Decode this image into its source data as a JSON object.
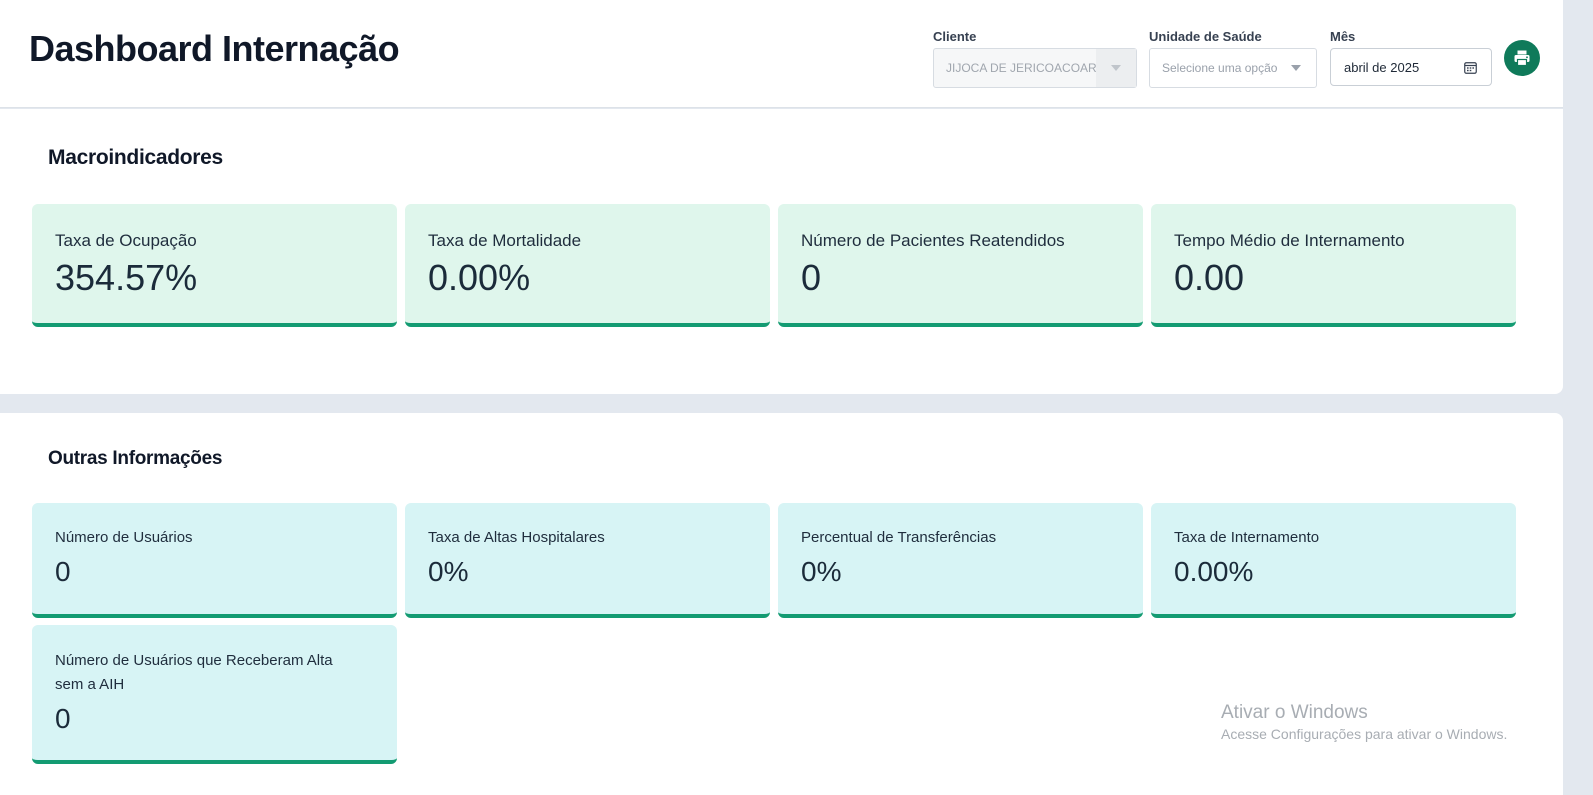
{
  "header": {
    "title": "Dashboard Internação",
    "filters": {
      "cliente": {
        "label": "Cliente",
        "value": "JIJOCA DE JERICOACOARA"
      },
      "unidade": {
        "label": "Unidade de Saúde",
        "placeholder": "Selecione uma opção"
      },
      "mes": {
        "label": "Mês",
        "value": "abril de 2025"
      }
    },
    "print_icon": "printer-icon"
  },
  "macro": {
    "title": "Macroindicadores",
    "cards": [
      {
        "label": "Taxa de Ocupação",
        "value": "354.57%"
      },
      {
        "label": "Taxa de Mortalidade",
        "value": "0.00%"
      },
      {
        "label": "Número de Pacientes Reatendidos",
        "value": "0"
      },
      {
        "label": "Tempo Médio de Internamento",
        "value": "0.00"
      }
    ]
  },
  "outras": {
    "title": "Outras Informações",
    "cards": [
      {
        "label": "Número de Usuários",
        "value": "0"
      },
      {
        "label": "Taxa de Altas Hospitalares",
        "value": "0%"
      },
      {
        "label": "Percentual de Transferências",
        "value": "0%"
      },
      {
        "label": "Taxa de Internamento",
        "value": "0.00%"
      },
      {
        "label": "Número de Usuários que Receberam Alta sem a AIH",
        "value": "0"
      }
    ]
  },
  "watermark": {
    "title": "Ativar o Windows",
    "subtitle": "Acesse Configurações para ativar o Windows."
  },
  "colors": {
    "accent": "#139b72",
    "macro_card_bg": "#dff6ec",
    "other_card_bg": "#d7f4f5",
    "print_button": "#0f7a5a"
  }
}
